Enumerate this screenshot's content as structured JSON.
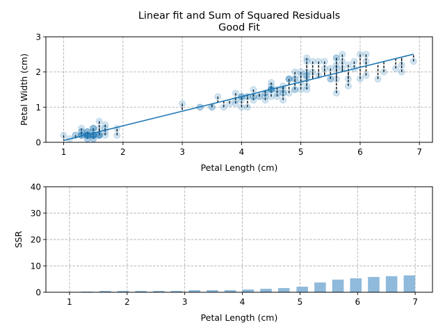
{
  "chart_data": [
    {
      "type": "scatter",
      "title": "Linear fit and Sum of Squared Residuals",
      "subtitle": "Good Fit",
      "xlabel": "Petal Length (cm)",
      "ylabel": "Petal Width (cm)",
      "xlim": [
        0.7,
        7.22
      ],
      "ylim": [
        0,
        3
      ],
      "xticks": [
        "1",
        "2",
        "3",
        "4",
        "5",
        "6",
        "7"
      ],
      "yticks": [
        "0",
        "1",
        "2",
        "3"
      ],
      "grid": true,
      "point_color": "#1f77b4",
      "line_color": "#1f77b4",
      "residual_color": "#000000",
      "x": [
        1.4,
        1.4,
        1.3,
        1.5,
        1.4,
        1.7,
        1.4,
        1.5,
        1.4,
        1.5,
        1.5,
        1.6,
        1.4,
        1.1,
        1.2,
        1.5,
        1.3,
        1.4,
        1.7,
        1.5,
        1.7,
        1.5,
        1.0,
        1.7,
        1.9,
        1.6,
        1.6,
        1.5,
        1.4,
        1.6,
        1.6,
        1.5,
        1.5,
        1.4,
        1.5,
        1.2,
        1.3,
        1.4,
        1.3,
        1.5,
        1.3,
        1.3,
        1.3,
        1.6,
        1.9,
        1.4,
        1.6,
        1.4,
        1.5,
        1.4,
        4.7,
        4.5,
        4.9,
        4.0,
        4.6,
        4.5,
        4.7,
        3.3,
        4.6,
        3.9,
        3.5,
        4.2,
        4.0,
        4.7,
        3.6,
        4.4,
        4.5,
        4.1,
        4.5,
        3.9,
        4.8,
        4.0,
        4.9,
        4.7,
        4.3,
        4.4,
        4.8,
        5.0,
        4.5,
        3.5,
        3.8,
        3.7,
        3.9,
        5.1,
        4.5,
        4.5,
        4.7,
        4.4,
        4.1,
        4.0,
        4.4,
        4.6,
        4.0,
        3.3,
        4.2,
        4.2,
        4.2,
        4.3,
        3.0,
        4.1,
        6.0,
        5.1,
        5.9,
        5.6,
        5.8,
        6.6,
        4.5,
        6.3,
        5.8,
        6.1,
        5.1,
        5.3,
        5.5,
        5.0,
        5.1,
        5.3,
        5.5,
        6.7,
        6.9,
        5.0,
        5.7,
        4.9,
        6.7,
        4.9,
        5.7,
        6.0,
        4.8,
        4.9,
        5.6,
        5.8,
        6.1,
        6.4,
        5.6,
        5.1,
        5.6,
        6.1,
        5.6,
        5.5,
        4.8,
        5.4,
        5.6,
        5.1,
        5.1,
        5.9,
        5.7,
        5.2,
        5.0,
        5.2,
        5.4,
        5.1
      ],
      "y": [
        0.2,
        0.2,
        0.2,
        0.2,
        0.2,
        0.4,
        0.3,
        0.2,
        0.2,
        0.1,
        0.2,
        0.2,
        0.1,
        0.1,
        0.2,
        0.4,
        0.4,
        0.3,
        0.3,
        0.3,
        0.2,
        0.4,
        0.2,
        0.5,
        0.2,
        0.2,
        0.4,
        0.2,
        0.2,
        0.2,
        0.2,
        0.4,
        0.1,
        0.2,
        0.2,
        0.2,
        0.2,
        0.1,
        0.2,
        0.2,
        0.3,
        0.3,
        0.2,
        0.6,
        0.4,
        0.3,
        0.2,
        0.2,
        0.2,
        0.2,
        1.4,
        1.5,
        1.5,
        1.3,
        1.5,
        1.3,
        1.6,
        1.0,
        1.3,
        1.4,
        1.0,
        1.5,
        1.0,
        1.4,
        1.3,
        1.4,
        1.5,
        1.0,
        1.5,
        1.1,
        1.8,
        1.3,
        1.5,
        1.2,
        1.3,
        1.4,
        1.4,
        1.7,
        1.5,
        1.0,
        1.1,
        1.0,
        1.2,
        1.6,
        1.5,
        1.6,
        1.5,
        1.3,
        1.3,
        1.3,
        1.2,
        1.4,
        1.2,
        1.0,
        1.3,
        1.2,
        1.3,
        1.3,
        1.1,
        1.3,
        2.5,
        1.9,
        2.1,
        1.8,
        2.2,
        2.1,
        1.7,
        1.8,
        1.8,
        2.5,
        2.0,
        1.9,
        2.1,
        2.0,
        2.4,
        2.3,
        1.8,
        2.2,
        2.3,
        1.5,
        2.3,
        2.0,
        2.0,
        1.8,
        2.1,
        1.8,
        1.8,
        1.8,
        2.1,
        1.6,
        1.9,
        2.0,
        2.2,
        1.5,
        1.4,
        2.3,
        2.4,
        1.8,
        1.8,
        2.1,
        2.4,
        2.3,
        1.9,
        2.3,
        2.5,
        2.3,
        1.9,
        2.0,
        2.3,
        1.8
      ]
    },
    {
      "type": "bar",
      "xlabel": "Petal Length (cm)",
      "ylabel": "SSR",
      "xlim": [
        0.59,
        7.3
      ],
      "ylim": [
        0,
        40
      ],
      "xticks": [
        "1",
        "2",
        "3",
        "4",
        "5",
        "6",
        "7"
      ],
      "yticks": [
        "0",
        "10",
        "20",
        "30",
        "40"
      ],
      "grid": true,
      "bar_color": "#8fbadb",
      "x": [
        1.3,
        1.62,
        1.93,
        2.24,
        2.55,
        2.86,
        3.17,
        3.48,
        3.79,
        4.1,
        4.41,
        4.72,
        5.04,
        5.35,
        5.66,
        5.97,
        6.28,
        6.59,
        6.9
      ],
      "values": [
        0.27,
        0.53,
        0.53,
        0.53,
        0.53,
        0.53,
        0.8,
        0.8,
        0.8,
        1.06,
        1.33,
        1.6,
        2.1,
        3.7,
        4.8,
        5.3,
        5.8,
        6.1,
        6.4
      ]
    }
  ]
}
